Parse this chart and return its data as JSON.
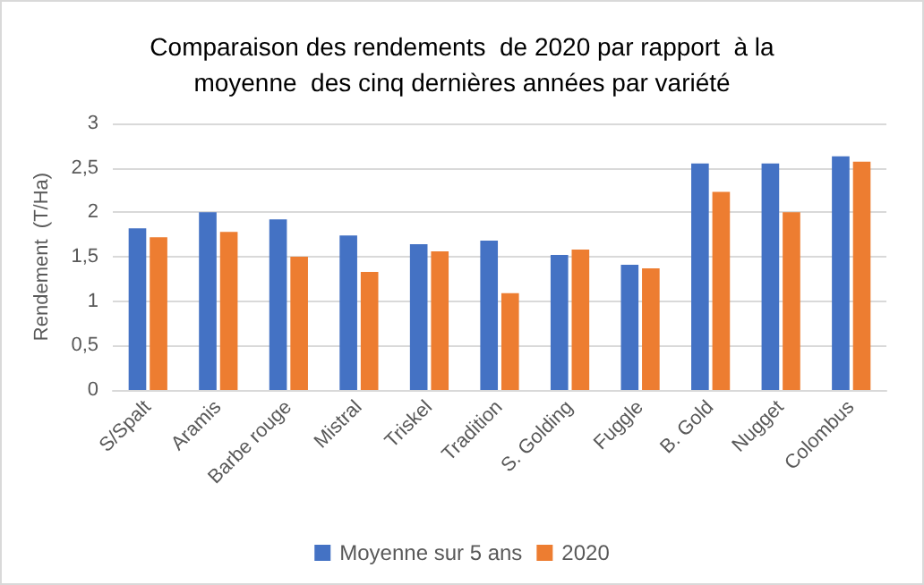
{
  "chart_data": {
    "type": "bar",
    "title": "Comparaison des rendements  de 2020 par rapport  à la\nmoyenne  des cinq dernières années par variété",
    "ylabel": "Rendement  (T/Ha)",
    "categories": [
      "S/Spalt",
      "Aramis",
      "Barbe rouge",
      "Mistral",
      "Triskel",
      "Tradition",
      "S. Golding",
      "Fuggle",
      "B. Gold",
      "Nugget",
      "Colombus"
    ],
    "series": [
      {
        "name": "Moyenne sur 5 ans",
        "color": "#4472c4",
        "values": [
          1.82,
          2.0,
          1.92,
          1.74,
          1.64,
          1.68,
          1.52,
          1.41,
          2.55,
          2.55,
          2.63
        ]
      },
      {
        "name": "2020",
        "color": "#ed7d31",
        "values": [
          1.72,
          1.78,
          1.5,
          1.33,
          1.56,
          1.09,
          1.58,
          1.37,
          2.23,
          2.0,
          2.57
        ]
      }
    ],
    "ylim": [
      0,
      3
    ],
    "yticks": [
      0,
      {
        "value": 0.5,
        "label": "0,5"
      },
      1,
      {
        "value": 1.5,
        "label": "1,5"
      },
      2,
      {
        "value": 2.5,
        "label": "2,5"
      },
      3
    ],
    "grid": "y",
    "legend": "bottom"
  }
}
